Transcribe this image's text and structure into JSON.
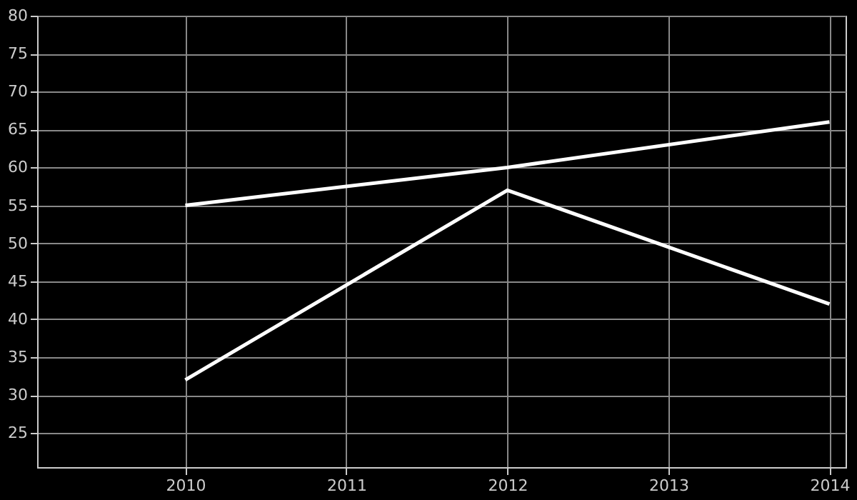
{
  "chart_data": {
    "type": "line",
    "series": [
      {
        "color": "#ffffff",
        "x": [
          2010,
          2012,
          2014
        ],
        "values": [
          55,
          60,
          66
        ]
      },
      {
        "color": "#ffffff",
        "x": [
          2010,
          2012,
          2014
        ],
        "values": [
          32,
          57,
          42
        ]
      }
    ],
    "xlim": [
      2009.08,
      2014.1
    ],
    "xticks": [
      2010,
      2011,
      2012,
      2013,
      2014
    ],
    "ylim": [
      20.5,
      80
    ],
    "yticks": [
      25,
      30,
      35,
      40,
      45,
      50,
      55,
      60,
      65,
      70,
      75,
      80
    ],
    "grid": true,
    "legend": false,
    "marker": "none",
    "line_style": "solid"
  }
}
